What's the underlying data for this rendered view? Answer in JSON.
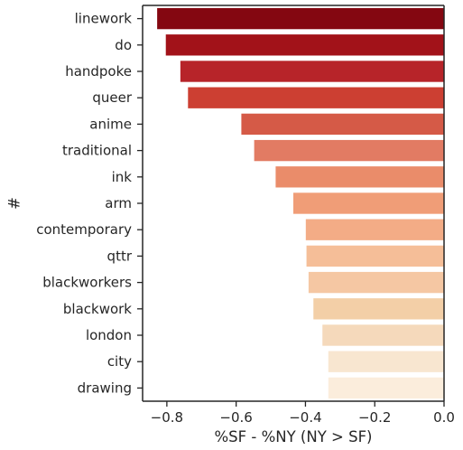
{
  "chart_data": {
    "type": "bar",
    "orientation": "horizontal",
    "categories": [
      "linework",
      "do",
      "handpoke",
      "queer",
      "anime",
      "traditional",
      "ink",
      "arm",
      "contemporary",
      "qttr",
      "blackworkers",
      "blackwork",
      "london",
      "city",
      "drawing"
    ],
    "values": [
      -0.828,
      -0.803,
      -0.761,
      -0.739,
      -0.585,
      -0.548,
      -0.486,
      -0.435,
      -0.399,
      -0.397,
      -0.391,
      -0.377,
      -0.351,
      -0.334,
      -0.334
    ],
    "colors": [
      "#840711",
      "#a21219",
      "#b72429",
      "#cc3f32",
      "#d55a47",
      "#e27b63",
      "#ea8c6a",
      "#f09d77",
      "#f3ac86",
      "#f5be98",
      "#f5c7a3",
      "#f3cfa7",
      "#f5d9bb",
      "#f8e6d0",
      "#fbeddc"
    ],
    "xlabel": "%SF - %NY (NY > SF)",
    "ylabel": "#",
    "xlim": [
      -0.87,
      0.0
    ],
    "xticks": [
      -0.8,
      -0.6,
      -0.4,
      -0.2,
      0.0
    ],
    "xtick_labels": [
      "−0.8",
      "−0.6",
      "−0.4",
      "−0.2",
      "0.0"
    ],
    "grid": false
  }
}
